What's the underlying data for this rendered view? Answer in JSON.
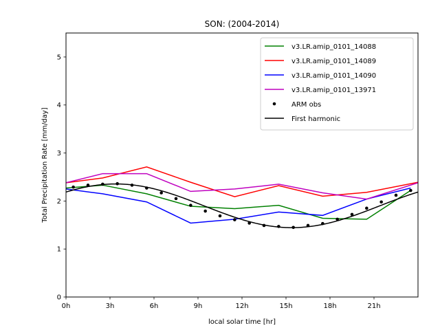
{
  "chart_data": {
    "type": "line",
    "title": "SON: (2004-2014)",
    "xlabel": "local solar time [hr]",
    "ylabel": "Total Precipitation Rate [mm/day]",
    "xlim": [
      0,
      24
    ],
    "ylim": [
      0,
      5.5
    ],
    "xticks": [
      0,
      3,
      6,
      9,
      12,
      15,
      18,
      21
    ],
    "xtick_labels": [
      "0h",
      "3h",
      "6h",
      "9h",
      "12h",
      "15h",
      "18h",
      "21h"
    ],
    "yticks": [
      0,
      1,
      2,
      3,
      4,
      5
    ],
    "ytick_labels": [
      "0",
      "1",
      "2",
      "3",
      "4",
      "5"
    ],
    "grid": false,
    "legend_position": "top-right",
    "series": [
      {
        "name": "v3.LR.amip_0101_14088",
        "color": "#008000",
        "style": "line",
        "x": [
          0,
          2.5,
          5.5,
          8.5,
          11.5,
          14.5,
          17.5,
          20.5,
          23.5
        ],
        "values": [
          2.27,
          2.33,
          2.15,
          1.89,
          1.84,
          1.91,
          1.64,
          1.62,
          2.22
        ]
      },
      {
        "name": "v3.LR.amip_0101_14089",
        "color": "#ff0000",
        "style": "line",
        "x": [
          0,
          2.5,
          5.5,
          8.5,
          11.5,
          14.5,
          17.5,
          20.5,
          24
        ],
        "values": [
          2.38,
          2.48,
          2.71,
          2.39,
          2.09,
          2.32,
          2.1,
          2.18,
          2.39
        ]
      },
      {
        "name": "v3.LR.amip_0101_14090",
        "color": "#0000ff",
        "style": "line",
        "x": [
          0,
          2.5,
          5.5,
          8.5,
          11.5,
          14.5,
          17.5,
          20.5,
          23.5
        ],
        "values": [
          2.25,
          2.15,
          1.98,
          1.54,
          1.62,
          1.77,
          1.7,
          2.04,
          2.27
        ]
      },
      {
        "name": "v3.LR.amip_0101_13971",
        "color": "#bf00bf",
        "style": "line",
        "x": [
          0,
          2.5,
          5.5,
          8.5,
          11.5,
          14.5,
          17.5,
          20.5,
          24
        ],
        "values": [
          2.38,
          2.57,
          2.57,
          2.2,
          2.25,
          2.35,
          2.17,
          2.04,
          2.38
        ]
      },
      {
        "name": "ARM obs",
        "color": "#000000",
        "style": "points",
        "x": [
          0.5,
          1.5,
          2.5,
          3.5,
          4.5,
          5.5,
          6.5,
          7.5,
          8.5,
          9.5,
          10.5,
          11.5,
          12.5,
          13.5,
          14.5,
          15.5,
          16.5,
          17.5,
          18.5,
          19.5,
          20.5,
          21.5,
          22.5,
          23.5
        ],
        "values": [
          2.29,
          2.33,
          2.35,
          2.36,
          2.33,
          2.27,
          2.17,
          2.05,
          1.91,
          1.79,
          1.69,
          1.61,
          1.54,
          1.49,
          1.47,
          1.45,
          1.49,
          1.53,
          1.62,
          1.72,
          1.85,
          1.98,
          2.12,
          2.22
        ]
      },
      {
        "name": "First harmonic",
        "color": "#000000",
        "style": "harmonic",
        "mean": 1.9,
        "amplitude": 0.455,
        "peak_hour": 3.4
      }
    ]
  }
}
